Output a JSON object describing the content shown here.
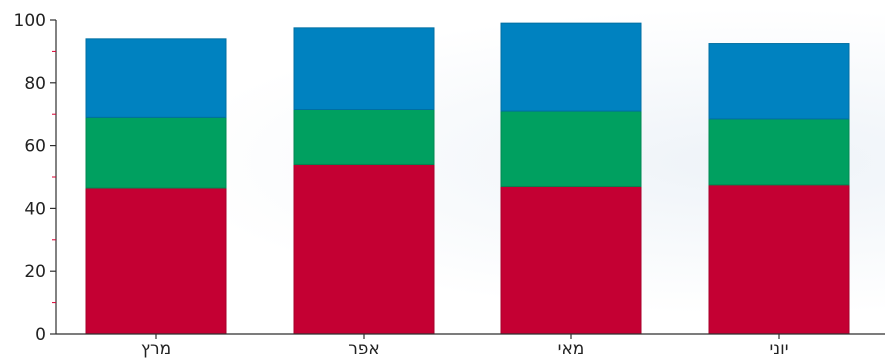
{
  "chart_data": {
    "type": "bar",
    "stacked": true,
    "title": "",
    "xlabel": "",
    "ylabel": "",
    "ylim": [
      0,
      100
    ],
    "yticks": [
      0,
      20,
      40,
      60,
      80,
      100
    ],
    "grid": false,
    "legend": "none",
    "categories": [
      "מרץ",
      "אפר",
      "מאי",
      "יוני"
    ],
    "series": [
      {
        "color": "#c40033",
        "values": [
          46.5,
          54,
          47,
          47.5
        ]
      },
      {
        "color": "#00a060",
        "values": [
          22.5,
          17.5,
          24,
          21
        ]
      },
      {
        "color": "#0082c0",
        "values": [
          25,
          26,
          28,
          24
        ]
      }
    ]
  }
}
